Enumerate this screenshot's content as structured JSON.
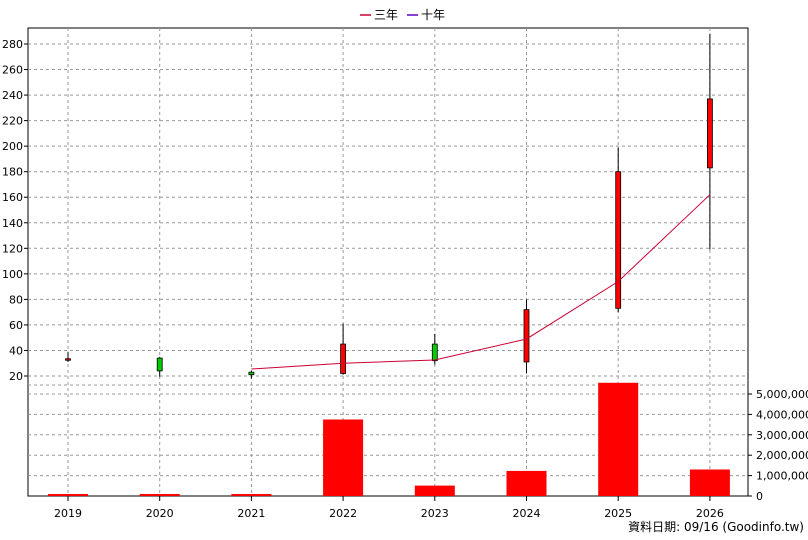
{
  "chart_data": {
    "type": "candlestick",
    "legend": [
      {
        "name": "三年",
        "color": "#cc0033"
      },
      {
        "name": "十年",
        "color": "#6600cc"
      }
    ],
    "categories": [
      "2019",
      "2020",
      "2021",
      "2022",
      "2023",
      "2024",
      "2025",
      "2026"
    ],
    "price": {
      "ylim": [
        10,
        290
      ],
      "ticks": [
        20,
        40,
        60,
        80,
        100,
        120,
        140,
        160,
        180,
        200,
        220,
        240,
        260,
        280
      ],
      "candles": [
        {
          "year": "2019",
          "open": 33.5,
          "close": 33.0,
          "high": 39.0,
          "low": 31.0
        },
        {
          "year": "2020",
          "open": 24.0,
          "close": 34.0,
          "high": 35.0,
          "low": 19.5
        },
        {
          "year": "2021",
          "open": 21.0,
          "close": 23.0,
          "high": 24.0,
          "low": 18.0
        },
        {
          "year": "2022",
          "open": 45.0,
          "close": 22.0,
          "high": 61.0,
          "low": 21.0
        },
        {
          "year": "2023",
          "open": 32.0,
          "close": 45.0,
          "high": 53.0,
          "low": 29.0
        },
        {
          "year": "2024",
          "open": 72.0,
          "close": 31.0,
          "high": 80.0,
          "low": 22.0
        },
        {
          "year": "2025",
          "open": 180.0,
          "close": 73.0,
          "high": 199.0,
          "low": 70.0
        },
        {
          "year": "2026",
          "open": 237.0,
          "close": 183.0,
          "high": 288.0,
          "low": 119.0
        }
      ],
      "up_color": "#00cc00",
      "down_color": "#ff0000"
    },
    "ma_three_year": {
      "name": "三年",
      "color": "#cc0033",
      "x": [
        "2021",
        "2022",
        "2023",
        "2024",
        "2025",
        "2026"
      ],
      "values": [
        25.5,
        30.0,
        32.5,
        49.0,
        94.0,
        162.0
      ]
    },
    "volume": {
      "ylim": [
        0,
        6000000
      ],
      "ticks": [
        0,
        1000000,
        2000000,
        3000000,
        4000000,
        5000000
      ],
      "tick_labels": [
        "0",
        "1,000,000",
        "2,000,000",
        "3,000,000",
        "4,000,000",
        "5,000,000"
      ],
      "values": [
        15000,
        15000,
        15000,
        3750000,
        510000,
        1230000,
        5550000,
        1300000
      ],
      "color": "#ff0000"
    },
    "grid": true
  },
  "footer": "資料日期: 09/16 (Goodinfo.tw)"
}
